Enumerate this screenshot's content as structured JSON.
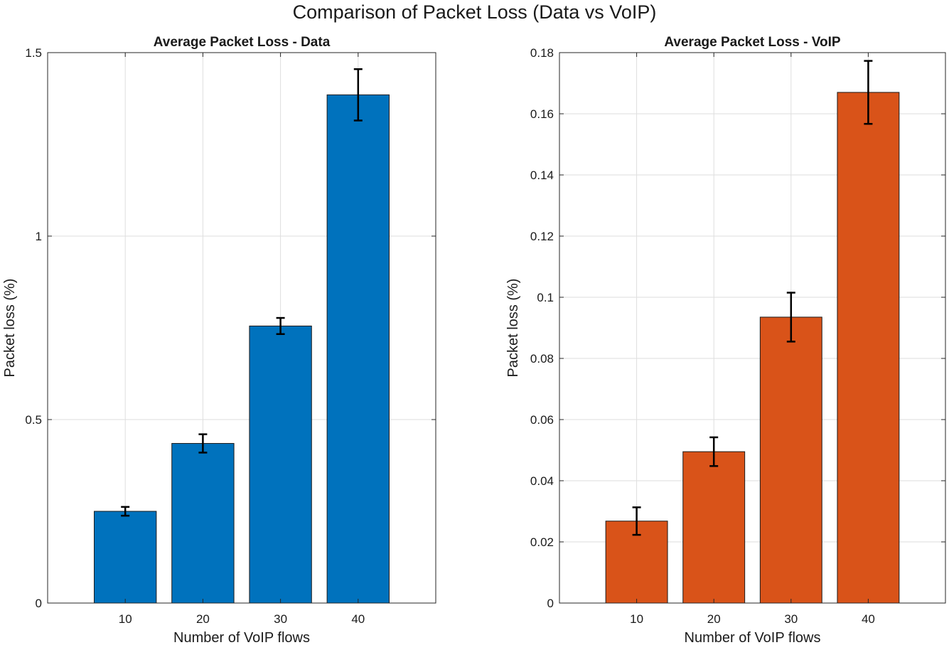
{
  "figure": {
    "title": "Comparison of Packet Loss (Data vs VoIP)"
  },
  "chart_data": [
    {
      "type": "bar",
      "title": "Average Packet Loss - Data",
      "xlabel": "Number of VoIP flows",
      "ylabel": "Packet loss (%)",
      "categories": [
        "10",
        "20",
        "30",
        "40"
      ],
      "values": [
        0.25,
        0.435,
        0.755,
        1.385
      ],
      "errors": [
        0.012,
        0.025,
        0.022,
        0.07
      ],
      "xlim": [
        0,
        50
      ],
      "ylim": [
        0,
        1.5
      ],
      "yticks": [
        0,
        0.5,
        1,
        1.5
      ],
      "ytick_labels": [
        "0",
        "0.5",
        "1",
        "1.5"
      ],
      "color": "#0072bd",
      "grid": true
    },
    {
      "type": "bar",
      "title": "Average Packet Loss - VoIP",
      "xlabel": "Number of VoIP flows",
      "ylabel": "Packet loss (%)",
      "categories": [
        "10",
        "20",
        "30",
        "40"
      ],
      "values": [
        0.0268,
        0.0495,
        0.0935,
        0.167
      ],
      "errors": [
        0.0045,
        0.0047,
        0.008,
        0.0103
      ],
      "xlim": [
        0,
        50
      ],
      "ylim": [
        0,
        0.18
      ],
      "yticks": [
        0,
        0.02,
        0.04,
        0.06,
        0.08,
        0.1,
        0.12,
        0.14,
        0.16,
        0.18
      ],
      "ytick_labels": [
        "0",
        "0.02",
        "0.04",
        "0.06",
        "0.08",
        "0.1",
        "0.12",
        "0.14",
        "0.16",
        "0.18"
      ],
      "color": "#d95319",
      "grid": true
    }
  ]
}
